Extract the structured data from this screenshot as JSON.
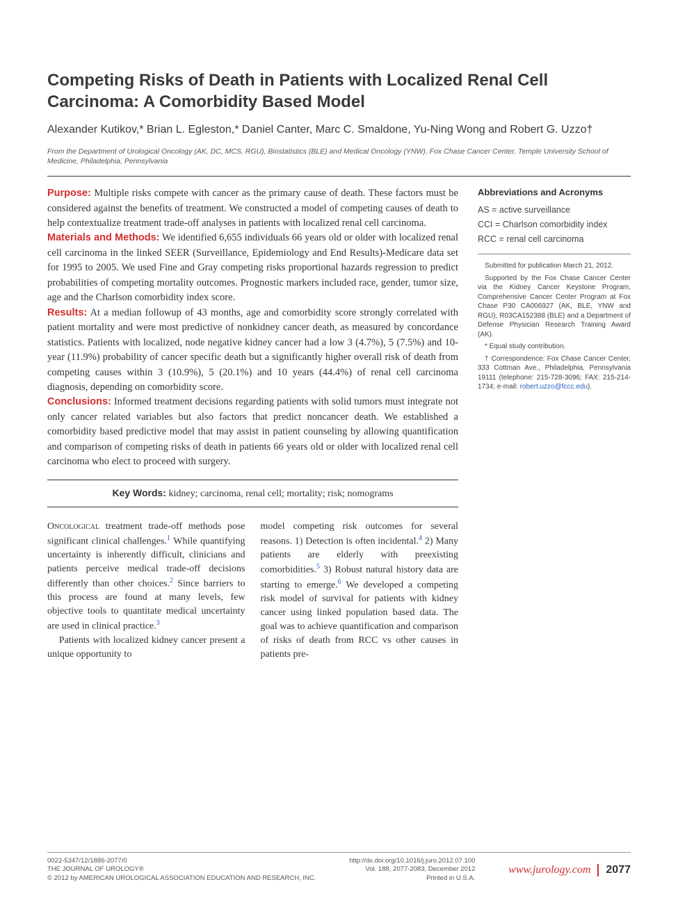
{
  "title": "Competing Risks of Death in Patients with Localized Renal Cell Carcinoma: A Comorbidity Based Model",
  "authors": "Alexander Kutikov,* Brian L. Egleston,* Daniel Canter, Marc C. Smaldone, Yu-Ning Wong and Robert G. Uzzo†",
  "affiliation": "From the Department of Urological Oncology (AK, DC, MCS, RGU), Biostatistics (BLE) and Medical Oncology (YNW), Fox Chase Cancer Center, Temple University School of Medicine, Philadelphia, Pennsylvania",
  "abstract": {
    "purpose": {
      "label": "Purpose:",
      "text": " Multiple risks compete with cancer as the primary cause of death. These factors must be considered against the benefits of treatment. We constructed a model of competing causes of death to help contextualize treatment trade-off analyses in patients with localized renal cell carcinoma."
    },
    "methods": {
      "label": "Materials and Methods:",
      "text": " We identified 6,655 individuals 66 years old or older with localized renal cell carcinoma in the linked SEER (Surveillance, Epidemiology and End Results)-Medicare data set for 1995 to 2005. We used Fine and Gray competing risks proportional hazards regression to predict probabilities of competing mortality outcomes. Prognostic markers included race, gender, tumor size, age and the Charlson comorbidity index score."
    },
    "results": {
      "label": "Results:",
      "text": " At a median followup of 43 months, age and comorbidity score strongly correlated with patient mortality and were most predictive of nonkidney cancer death, as measured by concordance statistics. Patients with localized, node negative kidney cancer had a low 3 (4.7%), 5 (7.5%) and 10-year (11.9%) probability of cancer specific death but a significantly higher overall risk of death from competing causes within 3 (10.9%), 5 (20.1%) and 10 years (44.4%) of renal cell carcinoma diagnosis, depending on comorbidity score."
    },
    "conclusions": {
      "label": "Conclusions:",
      "text": " Informed treatment decisions regarding patients with solid tumors must integrate not only cancer related variables but also factors that predict noncancer death. We established a comorbidity based predictive model that may assist in patient counseling by allowing quantification and comparison of competing risks of death in patients 66 years old or older with localized renal cell carcinoma who elect to proceed with surgery."
    }
  },
  "keywords": {
    "label": "Key Words:",
    "text": " kidney; carcinoma, renal cell; mortality; risk; nomograms"
  },
  "body": {
    "col1": {
      "p1a": "Oncological",
      "p1b": " treatment trade-off methods pose significant clinical challenges.",
      "s1": "1",
      "p1c": " While quantifying uncertainty is inherently difficult, clinicians and patients perceive medical trade-off decisions differently than other choices.",
      "s2": "2",
      "p1d": " Since barriers to this process are found at many levels, few objective tools to quantitate medical uncertainty are used in clinical practice.",
      "s3": "3",
      "p2": "Patients with localized kidney cancer present a unique opportunity to"
    },
    "col2": {
      "p1a": "model competing risk outcomes for several reasons. 1) Detection is often incidental.",
      "s4": "4",
      "p1b": " 2) Many patients are elderly with preexisting comorbidities.",
      "s5": "5",
      "p1c": " 3) Robust natural history data are starting to emerge.",
      "s6": "6",
      "p1d": " We developed a competing risk model of survival for patients with kidney cancer using linked population based data. The goal was to achieve quantification and comparison of risks of death from RCC vs other causes in patients pre-"
    }
  },
  "sidebar": {
    "abbrev_heading": "Abbreviations and Acronyms",
    "abbrevs": [
      "AS = active surveillance",
      "CCI = Charlson comorbidity index",
      "RCC = renal cell carcinoma"
    ],
    "notes": [
      "Submitted for publication March 21, 2012.",
      "Supported by the Fox Chase Cancer Center via the Kidney Cancer Keystone Program, Comprehensive Cancer Center Program at Fox Chase P30 CA006927 (AK, BLE, YNW and RGU), R03CA152388 (BLE) and a Department of Defense Physician Research Training Award (AK).",
      "* Equal study contribution.",
      "† Correspondence: Fox Chase Cancer Center, 333 Cottman Ave., Philadelphia, Pennsylvania 19111 (telephone: 215-728-3096; FAX: 215-214-1734; e-mail: "
    ],
    "email": "robert.uzzo@fccc.edu",
    "email_suffix": ")."
  },
  "footer": {
    "left": [
      "0022-5347/12/1886-2077/0",
      "THE JOURNAL OF UROLOGY®",
      "© 2012 by AMERICAN UROLOGICAL ASSOCIATION EDUCATION AND RESEARCH, INC."
    ],
    "mid": [
      "http://dx.doi.org/10.1016/j.juro.2012.07.100",
      "Vol. 188, 2077-2083, December 2012",
      "Printed in U.S.A."
    ],
    "brand": "www.jurology.com",
    "page": "2077"
  }
}
